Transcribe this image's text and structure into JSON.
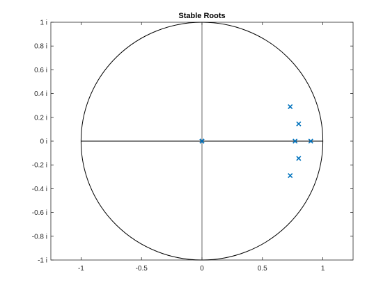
{
  "chart_data": {
    "type": "scatter",
    "title": "Stable Roots",
    "xlabel": "",
    "ylabel": "",
    "xlim": [
      -1.25,
      1.25
    ],
    "ylim": [
      -1,
      1
    ],
    "x_ticks": [
      -1,
      -0.5,
      0,
      0.5,
      1
    ],
    "x_tick_labels": [
      "-1",
      "-0.5",
      "0",
      "0.5",
      "1"
    ],
    "y_ticks": [
      1,
      0.8,
      0.6,
      0.4,
      0.2,
      0,
      -0.2,
      -0.4,
      -0.6,
      -0.8,
      -1
    ],
    "y_tick_labels": [
      "1 i",
      "0.8 i",
      "0.6 i",
      "0.4 i",
      "0.2 i",
      "0 i",
      "-0.2 i",
      "-0.4 i",
      "-0.6 i",
      "-0.8 i",
      "-1 i"
    ],
    "grid": false,
    "unit_circle": true,
    "axes_lines_through_origin": true,
    "marker": "x",
    "marker_color": "#0072BD",
    "series": [
      {
        "points": [
          {
            "x": 0.73,
            "y": 0.29
          },
          {
            "x": 0.8,
            "y": 0.145
          },
          {
            "x": 0.77,
            "y": 0.0
          },
          {
            "x": 0.9,
            "y": 0.0
          },
          {
            "x": 0.8,
            "y": -0.145
          },
          {
            "x": 0.73,
            "y": -0.29
          },
          {
            "x": 0.0,
            "y": 0.0
          },
          {
            "x": 0.0,
            "y": 0.0
          },
          {
            "x": 0.0,
            "y": 0.0
          }
        ]
      }
    ]
  }
}
